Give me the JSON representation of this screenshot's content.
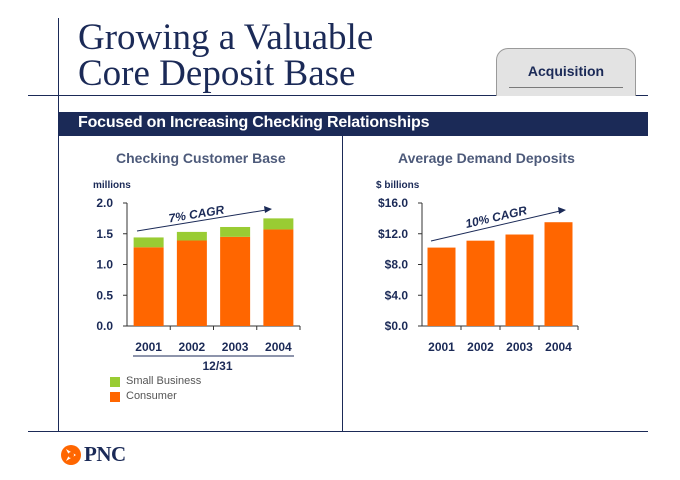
{
  "slide": {
    "title_lines": [
      "Growing a Valuable",
      "Core Deposit Base"
    ],
    "tab_label": "Acquisition",
    "banner": "Focused on Increasing Checking Relationships",
    "logo_text": "PNC"
  },
  "colors": {
    "navy": "#1b2a57",
    "consumer_orange": "#ff6600",
    "small_business_green": "#99cc33"
  },
  "chart_data": [
    {
      "type": "bar",
      "title": "Checking Customer Base",
      "ylabel": "millions",
      "xlabel": "12/31",
      "categories": [
        "2001",
        "2002",
        "2003",
        "2004"
      ],
      "stacked": true,
      "series": [
        {
          "name": "Consumer",
          "values": [
            1.28,
            1.39,
            1.45,
            1.57
          ]
        },
        {
          "name": "Small Business",
          "values": [
            0.16,
            0.14,
            0.16,
            0.18
          ]
        }
      ],
      "ylim": [
        0,
        2.0
      ],
      "yticks": [
        "0.0",
        "0.5",
        "1.0",
        "1.5",
        "2.0"
      ],
      "annotation": "7% CAGR",
      "legend_placement": "bottom-left"
    },
    {
      "type": "bar",
      "title": "Average Demand Deposits",
      "ylabel": "$ billions",
      "xlabel": "",
      "categories": [
        "2001",
        "2002",
        "2003",
        "2004"
      ],
      "series": [
        {
          "values": [
            10.2,
            11.1,
            11.9,
            13.5
          ]
        }
      ],
      "ylim": [
        0,
        16
      ],
      "yticks": [
        "$0.0",
        "$4.0",
        "$8.0",
        "$12.0",
        "$16.0"
      ],
      "annotation": "10% CAGR"
    }
  ]
}
